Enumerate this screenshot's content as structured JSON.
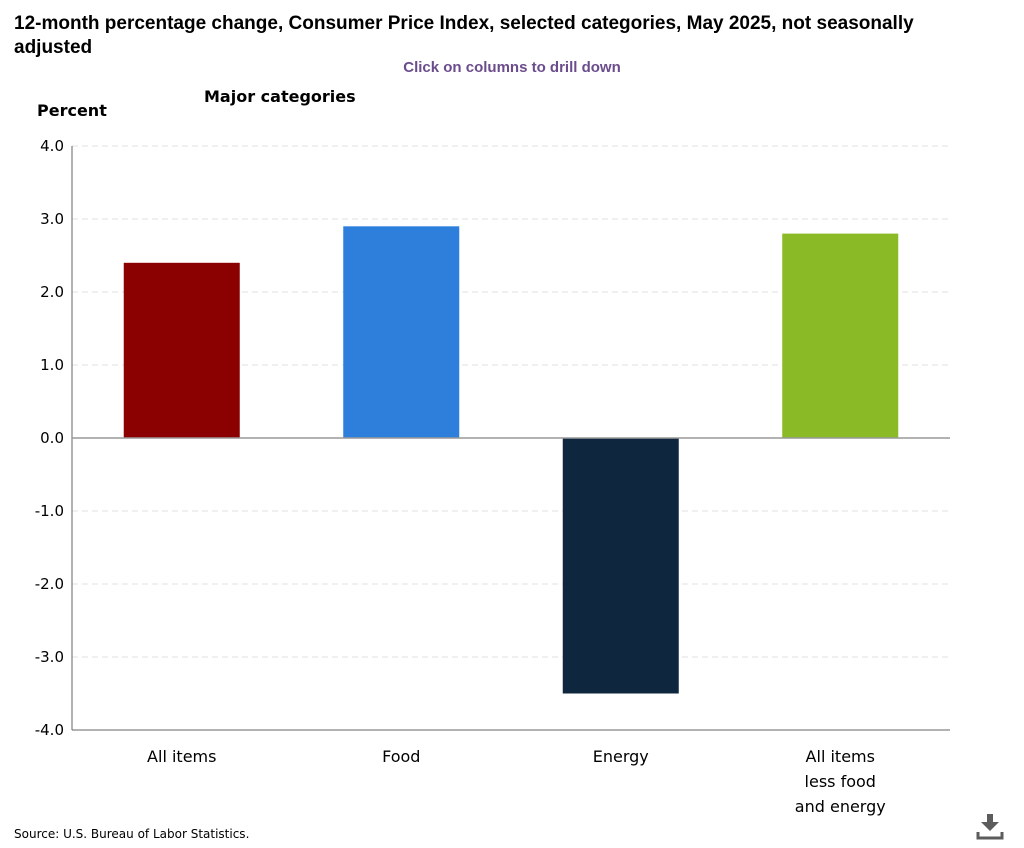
{
  "title": "12-month percentage change, Consumer Price Index, selected categories, May 2025, not seasonally adjusted",
  "subtitle": "Click on columns to drill down",
  "source": "Source: U.S. Bureau of Labor Statistics.",
  "download_icon": "download-icon",
  "chart_data": {
    "type": "bar",
    "title": "12-month percentage change, Consumer Price Index, selected categories, May 2025, not seasonally adjusted",
    "group_label": "Major categories",
    "ylabel": "Percent",
    "xlabel": "",
    "ylim": [
      -4,
      4
    ],
    "yticks": [
      "4.0",
      "3.0",
      "2.0",
      "1.0",
      "0.0",
      "-1.0",
      "-2.0",
      "-3.0",
      "-4.0"
    ],
    "grid": true,
    "categories": [
      [
        "All items"
      ],
      [
        "Food"
      ],
      [
        "Energy"
      ],
      [
        "All items",
        "less food",
        "and energy"
      ]
    ],
    "values": [
      2.4,
      2.9,
      -3.5,
      2.8
    ],
    "colors": [
      "#8b0000",
      "#2e7fdb",
      "#0f263f",
      "#8aba25"
    ]
  }
}
